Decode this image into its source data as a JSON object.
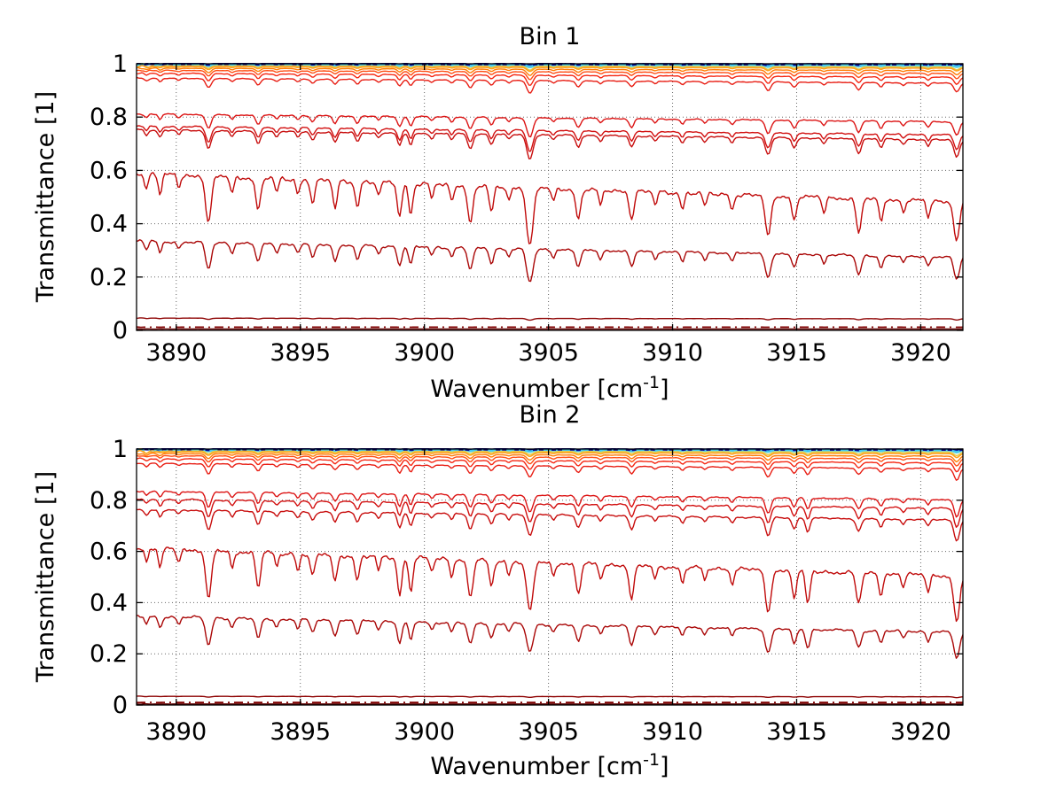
{
  "figure": {
    "background": "#FFFFFF",
    "grid_color": "#666666",
    "axis_color": "#000000"
  },
  "chart_data": [
    {
      "type": "line",
      "title": "Bin 1",
      "xlabel": "Wavenumber [cm^-1]",
      "xlabel_parts": {
        "pre": "Wavenumber [cm",
        "sup": "-1",
        "post": "]"
      },
      "ylabel": "Transmittance [1]",
      "xlim": [
        3888.4,
        3921.7
      ],
      "ylim": [
        0,
        1
      ],
      "xticks": [
        3890,
        3895,
        3900,
        3905,
        3910,
        3915,
        3920
      ],
      "xticklabels": [
        "3890",
        "3895",
        "3900",
        "3905",
        "3910",
        "3915",
        "3920"
      ],
      "yticks": [
        0,
        0.2,
        0.4,
        0.6,
        0.8,
        1
      ],
      "yticklabels": [
        "0",
        "0.2",
        "0.4",
        "0.6",
        "0.8",
        "1"
      ],
      "grid": "dotted",
      "legend": "none",
      "n_samples": 500,
      "continuum_slope": 0.2,
      "absorption_lines": [
        [
          3888.8,
          0.1,
          0.1
        ],
        [
          3889.35,
          0.14,
          0.1
        ],
        [
          3890.1,
          0.08,
          0.1
        ],
        [
          3891.3,
          0.36,
          0.15
        ],
        [
          3892.25,
          0.12,
          0.1
        ],
        [
          3893.3,
          0.24,
          0.13
        ],
        [
          3894.05,
          0.1,
          0.1
        ],
        [
          3894.9,
          0.1,
          0.1
        ],
        [
          3895.5,
          0.16,
          0.12
        ],
        [
          3896.4,
          0.2,
          0.12
        ],
        [
          3897.3,
          0.18,
          0.12
        ],
        [
          3898.15,
          0.1,
          0.1
        ],
        [
          3899.0,
          0.26,
          0.12
        ],
        [
          3899.45,
          0.24,
          0.11
        ],
        [
          3900.3,
          0.1,
          0.1
        ],
        [
          3901.1,
          0.12,
          0.1
        ],
        [
          3901.85,
          0.3,
          0.14
        ],
        [
          3902.7,
          0.2,
          0.12
        ],
        [
          3903.4,
          0.1,
          0.1
        ],
        [
          3904.25,
          0.52,
          0.17
        ],
        [
          3905.2,
          0.1,
          0.1
        ],
        [
          3906.2,
          0.24,
          0.13
        ],
        [
          3907.1,
          0.12,
          0.1
        ],
        [
          3908.35,
          0.22,
          0.13
        ],
        [
          3909.3,
          0.1,
          0.1
        ],
        [
          3910.4,
          0.13,
          0.1
        ],
        [
          3911.3,
          0.1,
          0.1
        ],
        [
          3912.4,
          0.12,
          0.1
        ],
        [
          3913.85,
          0.36,
          0.15
        ],
        [
          3914.9,
          0.2,
          0.12
        ],
        [
          3916.1,
          0.12,
          0.1
        ],
        [
          3917.5,
          0.3,
          0.14
        ],
        [
          3918.4,
          0.18,
          0.11
        ],
        [
          3919.3,
          0.1,
          0.1
        ],
        [
          3920.3,
          0.14,
          0.1
        ],
        [
          3921.45,
          0.36,
          0.15
        ]
      ],
      "series": [
        {
          "name": "spectrum-cyan-solid",
          "color": "#5FD4E8",
          "width": 1.8,
          "dash": "",
          "baseline": 0.9965,
          "depth": 0.018,
          "edge": 0.015
        },
        {
          "name": "spectrum-yellow",
          "color": "#E2CE4A",
          "width": 1.5,
          "dash": "",
          "baseline": 0.994,
          "depth": 0.03,
          "edge": 0.01
        },
        {
          "name": "spectrum-navy-thick",
          "color": "#00008F",
          "width": 2.7,
          "dash": "",
          "baseline": 0.9995,
          "depth": 0.008,
          "edge": 0.004
        },
        {
          "name": "spectrum-cyan-dashdot",
          "color": "#3FC8F0",
          "width": 1.9,
          "dash": "9 5 2 5",
          "baseline": 0.998,
          "depth": 0.012,
          "edge": 0.008
        },
        {
          "name": "spectrum-orange-1",
          "color": "#FFA01E",
          "width": 1.6,
          "dash": "",
          "baseline": 0.9895,
          "depth": 0.03,
          "edge": 0.005
        },
        {
          "name": "spectrum-orange-2",
          "color": "#FF7D05",
          "width": 1.4,
          "dash": "",
          "baseline": 0.9835,
          "depth": 0.045,
          "edge": 0.004
        },
        {
          "name": "spectrum-orangered",
          "color": "#FF4E14",
          "width": 1.4,
          "dash": "",
          "baseline": 0.9755,
          "depth": 0.06,
          "edge": 0.004
        },
        {
          "name": "spectrum-red-band-1",
          "color": "#F52814",
          "width": 1.4,
          "dash": "",
          "baseline": 0.9645,
          "depth": 0.08,
          "edge": 0.003
        },
        {
          "name": "spectrum-red-band-2",
          "color": "#E81E14",
          "width": 1.4,
          "dash": "",
          "baseline": 0.946,
          "depth": 0.1,
          "edge": 0.003
        },
        {
          "name": "spectrum-red-0.81",
          "color": "#DC1414",
          "width": 1.4,
          "dash": "",
          "baseline": 0.812,
          "depth": 0.19,
          "edge": 0.002
        },
        {
          "name": "spectrum-red-0.77",
          "color": "#D21010",
          "width": 1.4,
          "dash": "",
          "baseline": 0.766,
          "depth": 0.22,
          "edge": 0.002
        },
        {
          "name": "spectrum-red-0.75",
          "color": "#C80D0D",
          "width": 1.4,
          "dash": "",
          "baseline": 0.752,
          "depth": 0.26,
          "edge": 0.002
        },
        {
          "name": "spectrum-red-0.58",
          "color": "#C00A0A",
          "width": 1.4,
          "dash": "",
          "baseline": 0.588,
          "depth": 1.0,
          "edge": 0.002
        },
        {
          "name": "spectrum-darkred-0.33",
          "color": "#AA0707",
          "width": 1.4,
          "dash": "",
          "baseline": 0.335,
          "depth": 1.0,
          "edge": 0.002
        },
        {
          "name": "spectrum-darkred-0.05",
          "color": "#8F0505",
          "width": 1.4,
          "dash": "",
          "baseline": 0.046,
          "depth": 0.3,
          "edge": 0.001
        },
        {
          "name": "spectrum-maroon-dashdot",
          "color": "#800000",
          "width": 1.7,
          "dash": "10 5 2 5",
          "baseline": 0.012,
          "depth": 0.03,
          "edge": 0.001
        },
        {
          "name": "spectrum-maroon-base",
          "color": "#600000",
          "width": 1.4,
          "dash": "",
          "baseline": 0.005,
          "depth": 0.02,
          "edge": 0.001
        }
      ]
    },
    {
      "type": "line",
      "title": "Bin 2",
      "xlabel": "Wavenumber [cm^-1]",
      "xlabel_parts": {
        "pre": "Wavenumber [cm",
        "sup": "-1",
        "post": "]"
      },
      "ylabel": "Transmittance [1]",
      "xlim": [
        3888.4,
        3921.7
      ],
      "ylim": [
        0,
        1
      ],
      "xticks": [
        3890,
        3895,
        3900,
        3905,
        3910,
        3915,
        3920
      ],
      "xticklabels": [
        "3890",
        "3895",
        "3900",
        "3905",
        "3910",
        "3915",
        "3920"
      ],
      "yticks": [
        0,
        0.2,
        0.4,
        0.6,
        0.8,
        1
      ],
      "yticklabels": [
        "0",
        "0.2",
        "0.4",
        "0.6",
        "0.8",
        "1"
      ],
      "grid": "dotted",
      "legend": "none",
      "n_samples": 500,
      "continuum_slope": 0.2,
      "absorption_lines": [
        [
          3888.8,
          0.1,
          0.1
        ],
        [
          3889.35,
          0.14,
          0.1
        ],
        [
          3890.1,
          0.08,
          0.1
        ],
        [
          3891.3,
          0.38,
          0.15
        ],
        [
          3892.25,
          0.12,
          0.1
        ],
        [
          3893.3,
          0.26,
          0.13
        ],
        [
          3894.05,
          0.1,
          0.1
        ],
        [
          3894.9,
          0.12,
          0.1
        ],
        [
          3895.5,
          0.16,
          0.12
        ],
        [
          3896.4,
          0.2,
          0.12
        ],
        [
          3897.3,
          0.18,
          0.12
        ],
        [
          3898.15,
          0.1,
          0.1
        ],
        [
          3899.0,
          0.3,
          0.12
        ],
        [
          3899.45,
          0.26,
          0.11
        ],
        [
          3900.3,
          0.1,
          0.1
        ],
        [
          3901.1,
          0.12,
          0.1
        ],
        [
          3901.85,
          0.3,
          0.14
        ],
        [
          3902.7,
          0.2,
          0.12
        ],
        [
          3903.4,
          0.1,
          0.1
        ],
        [
          3904.25,
          0.42,
          0.17
        ],
        [
          3905.2,
          0.1,
          0.1
        ],
        [
          3906.2,
          0.24,
          0.13
        ],
        [
          3907.1,
          0.12,
          0.1
        ],
        [
          3908.35,
          0.28,
          0.13
        ],
        [
          3909.3,
          0.1,
          0.1
        ],
        [
          3910.4,
          0.13,
          0.1
        ],
        [
          3911.3,
          0.1,
          0.1
        ],
        [
          3912.4,
          0.12,
          0.1
        ],
        [
          3913.85,
          0.38,
          0.15
        ],
        [
          3914.9,
          0.22,
          0.12
        ],
        [
          3915.45,
          0.28,
          0.12
        ],
        [
          3917.5,
          0.26,
          0.14
        ],
        [
          3918.4,
          0.18,
          0.11
        ],
        [
          3919.3,
          0.1,
          0.1
        ],
        [
          3920.3,
          0.14,
          0.1
        ],
        [
          3921.45,
          0.45,
          0.15
        ]
      ],
      "series": [
        {
          "name": "spectrum-cyan-solid",
          "color": "#5FD4E8",
          "width": 1.9,
          "dash": "",
          "baseline": 0.997,
          "depth": 0.018,
          "edge": 0.022
        },
        {
          "name": "spectrum-yellow",
          "color": "#E2CE4A",
          "width": 1.5,
          "dash": "",
          "baseline": 0.9935,
          "depth": 0.03,
          "edge": 0.014
        },
        {
          "name": "spectrum-navy-thick",
          "color": "#00008F",
          "width": 2.7,
          "dash": "",
          "baseline": 0.9995,
          "depth": 0.008,
          "edge": 0.005
        },
        {
          "name": "spectrum-cyan-dashdot",
          "color": "#3FC8F0",
          "width": 1.9,
          "dash": "9 5 2 5",
          "baseline": 0.998,
          "depth": 0.012,
          "edge": 0.01
        },
        {
          "name": "spectrum-orange-1",
          "color": "#FFA01E",
          "width": 1.6,
          "dash": "",
          "baseline": 0.989,
          "depth": 0.035,
          "edge": 0.006
        },
        {
          "name": "spectrum-orange-2",
          "color": "#FF7D05",
          "width": 1.4,
          "dash": "",
          "baseline": 0.982,
          "depth": 0.05,
          "edge": 0.005
        },
        {
          "name": "spectrum-orangered",
          "color": "#FF4E14",
          "width": 1.4,
          "dash": "",
          "baseline": 0.974,
          "depth": 0.065,
          "edge": 0.004
        },
        {
          "name": "spectrum-red-band-1",
          "color": "#F52814",
          "width": 1.4,
          "dash": "",
          "baseline": 0.962,
          "depth": 0.085,
          "edge": 0.003
        },
        {
          "name": "spectrum-red-band-2",
          "color": "#E81E14",
          "width": 1.4,
          "dash": "",
          "baseline": 0.944,
          "depth": 0.11,
          "edge": 0.003
        },
        {
          "name": "spectrum-red-0.83",
          "color": "#DC1414",
          "width": 1.4,
          "dash": "",
          "baseline": 0.835,
          "depth": 0.2,
          "edge": 0.002
        },
        {
          "name": "spectrum-red-0.80",
          "color": "#D21010",
          "width": 1.4,
          "dash": "",
          "baseline": 0.804,
          "depth": 0.23,
          "edge": 0.002
        },
        {
          "name": "spectrum-red-0.76",
          "color": "#C80D0D",
          "width": 1.4,
          "dash": "",
          "baseline": 0.763,
          "depth": 0.27,
          "edge": 0.002
        },
        {
          "name": "spectrum-red-0.61",
          "color": "#C00A0A",
          "width": 1.4,
          "dash": "",
          "baseline": 0.614,
          "depth": 1.0,
          "edge": 0.002
        },
        {
          "name": "spectrum-darkred-0.35",
          "color": "#AA0707",
          "width": 1.4,
          "dash": "",
          "baseline": 0.347,
          "depth": 1.0,
          "edge": 0.002
        },
        {
          "name": "spectrum-darkred-0.03",
          "color": "#8F0505",
          "width": 1.4,
          "dash": "",
          "baseline": 0.034,
          "depth": 0.25,
          "edge": 0.001
        },
        {
          "name": "spectrum-maroon-dashdot",
          "color": "#800000",
          "width": 1.7,
          "dash": "10 5 2 5",
          "baseline": 0.01,
          "depth": 0.03,
          "edge": 0.001
        },
        {
          "name": "spectrum-maroon-base",
          "color": "#600000",
          "width": 1.4,
          "dash": "",
          "baseline": 0.004,
          "depth": 0.02,
          "edge": 0.001
        }
      ]
    }
  ]
}
